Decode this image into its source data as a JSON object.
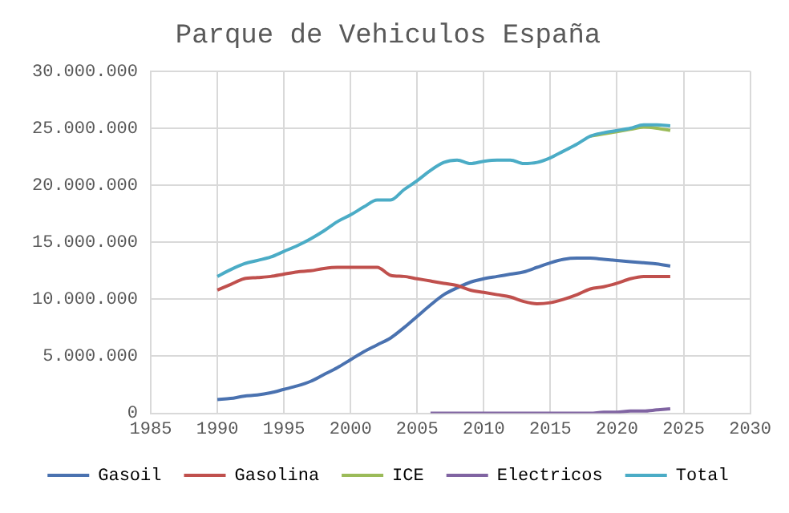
{
  "chart_data": {
    "type": "line",
    "title": "Parque de Vehiculos España",
    "x": [
      1990,
      1991,
      1992,
      1993,
      1994,
      1995,
      1996,
      1997,
      1998,
      1999,
      2000,
      2001,
      2002,
      2003,
      2004,
      2005,
      2006,
      2007,
      2008,
      2009,
      2010,
      2011,
      2012,
      2013,
      2014,
      2015,
      2016,
      2017,
      2018,
      2019,
      2020,
      2021,
      2022,
      2023,
      2024
    ],
    "series": [
      {
        "name": "Gasoil",
        "color": "#4a72b0",
        "values": [
          1200000,
          1300000,
          1500000,
          1600000,
          1800000,
          2100000,
          2400000,
          2800000,
          3400000,
          4000000,
          4700000,
          5400000,
          6000000,
          6600000,
          7500000,
          8500000,
          9500000,
          10400000,
          11000000,
          11500000,
          11800000,
          12000000,
          12200000,
          12400000,
          12800000,
          13200000,
          13500000,
          13600000,
          13600000,
          13500000,
          13400000,
          13300000,
          13200000,
          13100000,
          12900000
        ]
      },
      {
        "name": "Gasolina",
        "color": "#c0504d",
        "values": [
          10800000,
          11300000,
          11800000,
          11900000,
          12000000,
          12200000,
          12400000,
          12500000,
          12700000,
          12800000,
          12800000,
          12800000,
          12800000,
          12100000,
          12000000,
          11800000,
          11600000,
          11400000,
          11200000,
          10800000,
          10600000,
          10400000,
          10200000,
          9800000,
          9600000,
          9700000,
          10000000,
          10400000,
          10900000,
          11100000,
          11400000,
          11800000,
          12000000,
          12000000,
          12000000
        ]
      },
      {
        "name": "ICE",
        "color": "#9bbb59",
        "values": [
          null,
          null,
          null,
          null,
          null,
          null,
          null,
          null,
          null,
          null,
          null,
          null,
          null,
          null,
          null,
          null,
          null,
          null,
          null,
          null,
          null,
          null,
          null,
          null,
          null,
          null,
          null,
          null,
          24300000,
          24500000,
          24700000,
          24900000,
          25100000,
          25000000,
          24800000
        ]
      },
      {
        "name": "Electricos",
        "color": "#8064a2",
        "x": [
          2006,
          2007,
          2008,
          2009,
          2010,
          2011,
          2012,
          2013,
          2014,
          2015,
          2016,
          2017,
          2018,
          2019,
          2020,
          2021,
          2022,
          2023,
          2024
        ],
        "values": [
          0,
          0,
          0,
          0,
          0,
          0,
          0,
          0,
          0,
          0,
          0,
          0,
          0,
          100000,
          100000,
          200000,
          200000,
          300000,
          400000
        ]
      },
      {
        "name": "Total",
        "color": "#4bacc6",
        "values": [
          12000000,
          12600000,
          13100000,
          13400000,
          13700000,
          14200000,
          14700000,
          15300000,
          16000000,
          16800000,
          17400000,
          18100000,
          18700000,
          18700000,
          19600000,
          20400000,
          21300000,
          22000000,
          22200000,
          21900000,
          22100000,
          22200000,
          22200000,
          21900000,
          22000000,
          22400000,
          23000000,
          23600000,
          24300000,
          24600000,
          24800000,
          25000000,
          25300000,
          25300000,
          25200000
        ]
      }
    ],
    "xlim": [
      1985,
      2030
    ],
    "xticks": [
      1985,
      1990,
      1995,
      2000,
      2005,
      2010,
      2015,
      2020,
      2025,
      2030
    ],
    "ylim": [
      0,
      30000000
    ],
    "yticks": [
      0,
      {
        "value": 5000000,
        "label": "5.000.000"
      },
      {
        "value": 10000000,
        "label": "10.000.000"
      },
      {
        "value": 15000000,
        "label": "15.000.000"
      },
      {
        "value": 20000000,
        "label": "20.000.000"
      },
      {
        "value": 25000000,
        "label": "25.000.000"
      },
      {
        "value": 30000000,
        "label": "30.000.000"
      }
    ],
    "grid": true,
    "legend": "bottom",
    "marker": "none",
    "line_style": "solid"
  }
}
